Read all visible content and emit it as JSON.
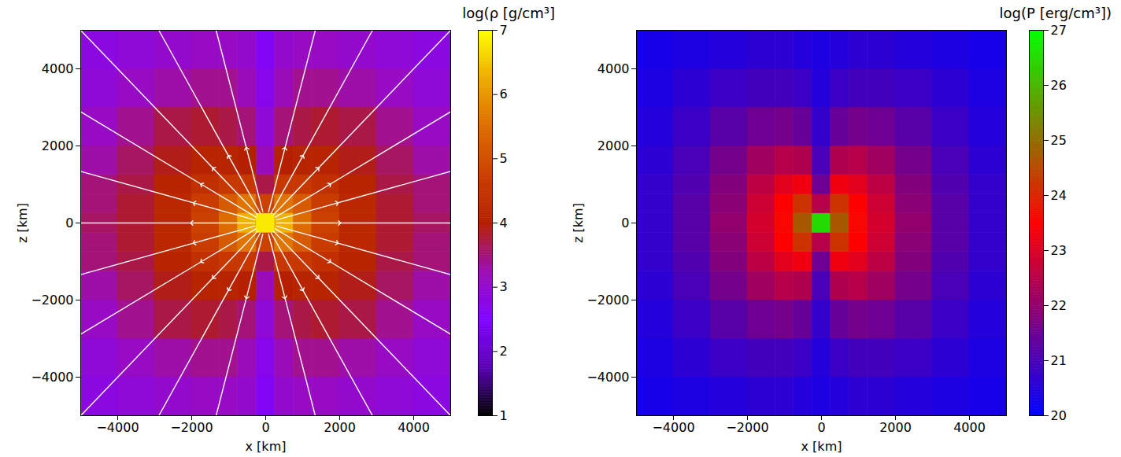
{
  "chart_data": [
    {
      "type": "heatmap",
      "xlabel": "x [km]",
      "ylabel": "z [km]",
      "xlim": [
        -5000,
        5000
      ],
      "ylim": [
        -5000,
        5000
      ],
      "xticks": [
        -4000,
        -2000,
        0,
        2000,
        4000
      ],
      "yticks": [
        -4000,
        -2000,
        0,
        2000,
        4000
      ],
      "colorbar_label": "log(ρ [g/cm³])",
      "colorbar_range": [
        1,
        7
      ],
      "colorbar_ticks": [
        1,
        2,
        3,
        4,
        5,
        6,
        7
      ],
      "colors": [
        "#000000",
        "#5a00b4",
        "#8004ff",
        "#9c0db4",
        "#b42000",
        "#ca3e00",
        "#dd6c00",
        "#eeab00",
        "#ffff00"
      ],
      "x_edges": [
        -5000,
        -4000,
        -3000,
        -2000,
        -1250,
        -750,
        -250,
        250,
        750,
        1250,
        2000,
        3000,
        4000,
        5000
      ],
      "z_edges": [
        -5000,
        -4000,
        -3000,
        -2000,
        -1250,
        -750,
        -250,
        250,
        750,
        1250,
        2000,
        3000,
        4000,
        5000
      ],
      "values": [
        [
          2.8,
          2.9,
          3.0,
          3.1,
          3.1,
          3.0,
          2.6,
          3.0,
          3.1,
          3.1,
          3.0,
          2.9,
          2.8
        ],
        [
          2.9,
          3.1,
          3.3,
          3.4,
          3.4,
          3.2,
          2.7,
          3.2,
          3.4,
          3.4,
          3.3,
          3.1,
          2.9
        ],
        [
          3.1,
          3.4,
          3.7,
          3.8,
          3.7,
          3.5,
          2.9,
          3.5,
          3.7,
          3.8,
          3.7,
          3.4,
          3.1
        ],
        [
          3.3,
          3.6,
          3.9,
          4.1,
          4.1,
          4.0,
          3.2,
          4.0,
          4.1,
          4.1,
          3.9,
          3.6,
          3.3
        ],
        [
          3.5,
          3.7,
          4.1,
          4.4,
          4.6,
          4.6,
          3.7,
          4.6,
          4.6,
          4.4,
          4.1,
          3.7,
          3.5
        ],
        [
          3.5,
          3.8,
          4.2,
          4.7,
          5.2,
          5.6,
          4.8,
          5.6,
          5.2,
          4.7,
          4.2,
          3.8,
          3.5
        ],
        [
          3.6,
          3.8,
          4.2,
          4.8,
          5.5,
          6.3,
          6.8,
          6.3,
          5.5,
          4.8,
          4.2,
          3.8,
          3.6
        ],
        [
          3.5,
          3.8,
          4.2,
          4.7,
          5.2,
          5.6,
          4.8,
          5.6,
          5.2,
          4.7,
          4.2,
          3.8,
          3.5
        ],
        [
          3.5,
          3.7,
          4.1,
          4.4,
          4.6,
          4.6,
          3.7,
          4.6,
          4.6,
          4.4,
          4.1,
          3.7,
          3.5
        ],
        [
          3.3,
          3.6,
          3.9,
          4.1,
          4.1,
          4.0,
          3.2,
          4.0,
          4.1,
          4.1,
          3.9,
          3.6,
          3.3
        ],
        [
          3.1,
          3.4,
          3.7,
          3.8,
          3.7,
          3.5,
          2.9,
          3.5,
          3.7,
          3.8,
          3.7,
          3.4,
          3.1
        ],
        [
          2.9,
          3.1,
          3.3,
          3.4,
          3.4,
          3.2,
          2.7,
          3.2,
          3.4,
          3.4,
          3.3,
          3.1,
          2.9
        ],
        [
          2.8,
          2.9,
          3.0,
          3.1,
          3.1,
          3.0,
          2.6,
          3.0,
          3.1,
          3.1,
          3.0,
          2.9,
          2.8
        ]
      ],
      "streamlines": {
        "color": "white",
        "marker": "arrow",
        "lines": [
          [
            [
              300,
              0
            ],
            [
              2000,
              0
            ],
            [
              5000,
              0
            ]
          ],
          [
            [
              -300,
              0
            ],
            [
              -2000,
              0
            ],
            [
              -5000,
              0
            ]
          ],
          [
            [
              290,
              78
            ],
            [
              1932,
              518
            ],
            [
              5000,
              1340
            ]
          ],
          [
            [
              260,
              150
            ],
            [
              1732,
              1000
            ],
            [
              5000,
              2887
            ]
          ],
          [
            [
              212,
              212
            ],
            [
              1414,
              1414
            ],
            [
              5000,
              5000
            ]
          ],
          [
            [
              150,
              260
            ],
            [
              1000,
              1732
            ],
            [
              2887,
              5000
            ]
          ],
          [
            [
              78,
              290
            ],
            [
              518,
              1932
            ],
            [
              1340,
              5000
            ]
          ],
          [
            [
              -290,
              78
            ],
            [
              -1932,
              518
            ],
            [
              -5000,
              1340
            ]
          ],
          [
            [
              -260,
              150
            ],
            [
              -1732,
              1000
            ],
            [
              -5000,
              2887
            ]
          ],
          [
            [
              -212,
              212
            ],
            [
              -1414,
              1414
            ],
            [
              -5000,
              5000
            ]
          ],
          [
            [
              -150,
              260
            ],
            [
              -1000,
              1732
            ],
            [
              -2887,
              5000
            ]
          ],
          [
            [
              -78,
              290
            ],
            [
              -518,
              1932
            ],
            [
              -1340,
              5000
            ]
          ],
          [
            [
              -290,
              -78
            ],
            [
              -1932,
              -518
            ],
            [
              -5000,
              -1340
            ]
          ],
          [
            [
              -260,
              -150
            ],
            [
              -1732,
              -1000
            ],
            [
              -5000,
              -2887
            ]
          ],
          [
            [
              -212,
              -212
            ],
            [
              -1414,
              -1414
            ],
            [
              -5000,
              -5000
            ]
          ],
          [
            [
              -150,
              -260
            ],
            [
              -1000,
              -1732
            ],
            [
              -2887,
              -5000
            ]
          ],
          [
            [
              -78,
              -290
            ],
            [
              -518,
              -1932
            ],
            [
              -1340,
              -5000
            ]
          ],
          [
            [
              290,
              -78
            ],
            [
              1932,
              -518
            ],
            [
              5000,
              -1340
            ]
          ],
          [
            [
              260,
              -150
            ],
            [
              1732,
              -1000
            ],
            [
              5000,
              -2887
            ]
          ],
          [
            [
              212,
              -212
            ],
            [
              1414,
              -1414
            ],
            [
              5000,
              -5000
            ]
          ],
          [
            [
              150,
              -260
            ],
            [
              1000,
              -1732
            ],
            [
              2887,
              -5000
            ]
          ],
          [
            [
              78,
              -290
            ],
            [
              518,
              -1932
            ],
            [
              1340,
              -5000
            ]
          ]
        ]
      }
    },
    {
      "type": "heatmap",
      "xlabel": "x [km]",
      "ylabel": "z [km]",
      "xlim": [
        -5000,
        5000
      ],
      "ylim": [
        -5000,
        5000
      ],
      "xticks": [
        -4000,
        -2000,
        0,
        2000,
        4000
      ],
      "yticks": [
        -4000,
        -2000,
        0,
        2000,
        4000
      ],
      "colorbar_label": "log(P [erg/cm³])",
      "colorbar_range": [
        20,
        27
      ],
      "colorbar_ticks": [
        20,
        21,
        22,
        23,
        24,
        25,
        26,
        27
      ],
      "colors": [
        "#0000ff",
        "#ff0000",
        "#00ff00"
      ],
      "x_edges": [
        -5000,
        -4000,
        -3000,
        -2000,
        -1250,
        -750,
        -250,
        250,
        750,
        1250,
        2000,
        3000,
        4000,
        5000
      ],
      "z_edges": [
        -5000,
        -4000,
        -3000,
        -2000,
        -1250,
        -750,
        -250,
        250,
        750,
        1250,
        2000,
        3000,
        4000,
        5000
      ],
      "values": [
        [
          20.3,
          20.4,
          20.5,
          20.6,
          20.6,
          20.5,
          20.4,
          20.5,
          20.6,
          20.6,
          20.5,
          20.4,
          20.3
        ],
        [
          20.4,
          20.6,
          20.8,
          20.9,
          20.9,
          20.8,
          20.5,
          20.8,
          20.9,
          20.9,
          20.8,
          20.6,
          20.4
        ],
        [
          20.5,
          20.8,
          21.2,
          21.5,
          21.6,
          21.4,
          20.7,
          21.4,
          21.6,
          21.5,
          21.2,
          20.8,
          20.5
        ],
        [
          20.6,
          21.0,
          21.6,
          22.2,
          22.5,
          22.4,
          21.0,
          22.4,
          22.5,
          22.2,
          21.6,
          21.0,
          20.6
        ],
        [
          20.7,
          21.1,
          21.8,
          22.6,
          23.1,
          23.3,
          21.5,
          23.3,
          23.1,
          22.6,
          21.8,
          21.1,
          20.7
        ],
        [
          20.7,
          21.2,
          21.9,
          22.8,
          23.5,
          24.2,
          22.5,
          24.2,
          23.5,
          22.8,
          21.9,
          21.2,
          20.7
        ],
        [
          20.7,
          21.2,
          22.0,
          22.9,
          23.6,
          24.7,
          26.5,
          24.7,
          23.6,
          22.9,
          22.0,
          21.2,
          20.7
        ],
        [
          20.7,
          21.2,
          21.9,
          22.8,
          23.5,
          24.2,
          22.5,
          24.2,
          23.5,
          22.8,
          21.9,
          21.2,
          20.7
        ],
        [
          20.7,
          21.1,
          21.8,
          22.6,
          23.1,
          23.3,
          21.5,
          23.3,
          23.1,
          22.6,
          21.8,
          21.1,
          20.7
        ],
        [
          20.6,
          21.0,
          21.6,
          22.2,
          22.5,
          22.4,
          21.0,
          22.4,
          22.5,
          22.2,
          21.6,
          21.0,
          20.6
        ],
        [
          20.5,
          20.8,
          21.2,
          21.5,
          21.6,
          21.4,
          20.7,
          21.4,
          21.6,
          21.5,
          21.2,
          20.8,
          20.5
        ],
        [
          20.4,
          20.6,
          20.8,
          20.9,
          20.9,
          20.8,
          20.5,
          20.8,
          20.9,
          20.9,
          20.8,
          20.6,
          20.4
        ],
        [
          20.3,
          20.4,
          20.5,
          20.6,
          20.6,
          20.5,
          20.4,
          20.5,
          20.6,
          20.6,
          20.5,
          20.4,
          20.3
        ]
      ]
    }
  ]
}
